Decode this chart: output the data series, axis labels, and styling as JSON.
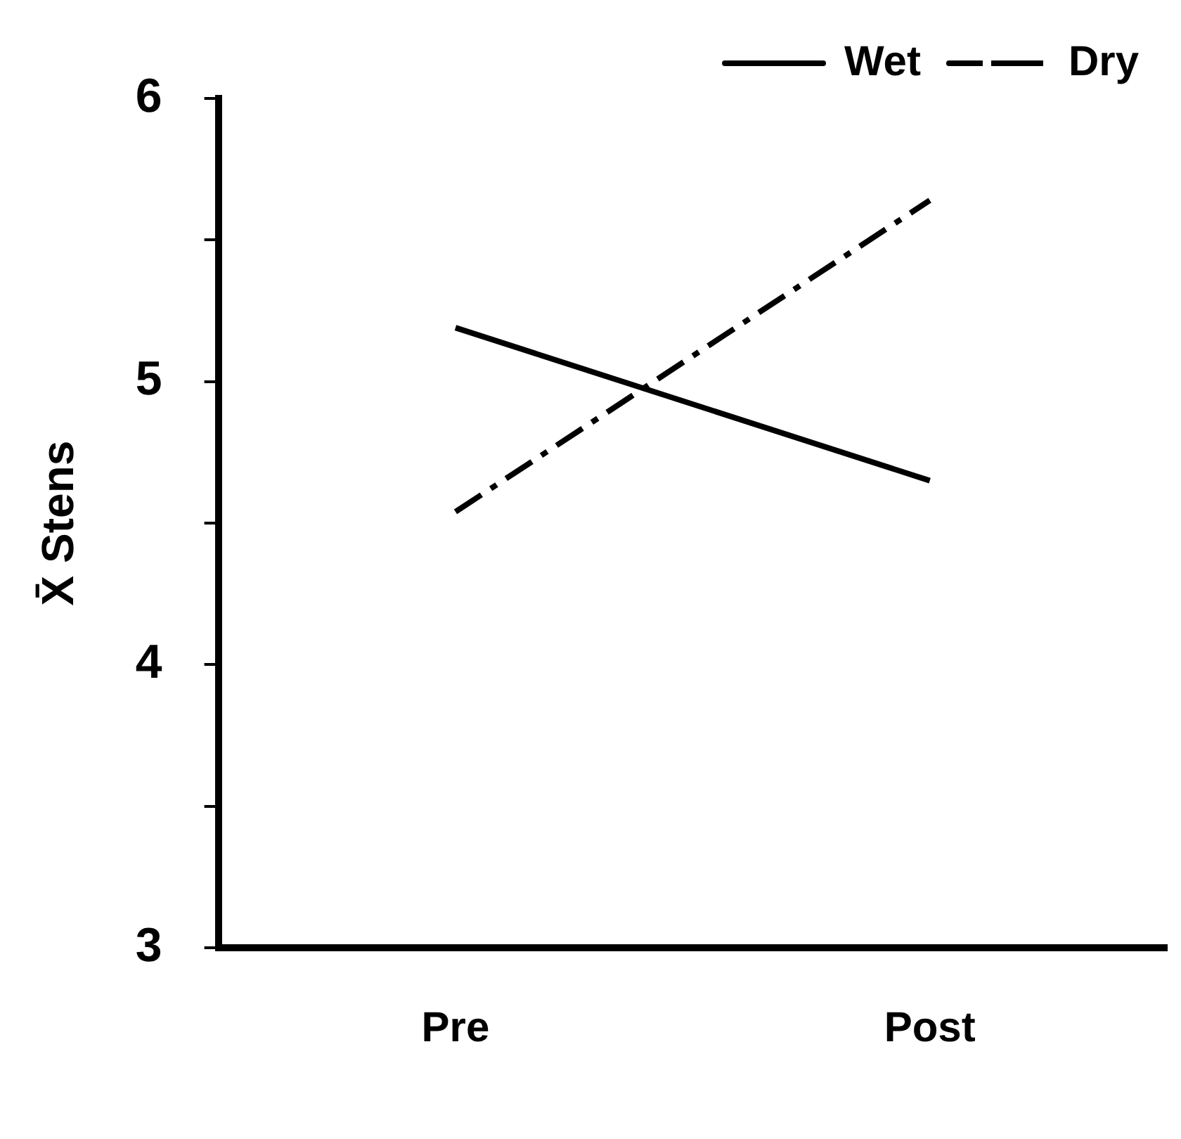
{
  "chart_data": {
    "type": "line",
    "ylabel": "X̄ Stens",
    "categories": [
      "Pre",
      "Post"
    ],
    "series": [
      {
        "name": "Wet",
        "color": "#000000",
        "values": [
          5.19,
          4.65
        ],
        "line_style": "solid"
      },
      {
        "name": "Dry",
        "color": "#000000",
        "values": [
          4.54,
          5.64
        ],
        "line_style": "dashed"
      }
    ],
    "ylim": [
      3,
      6
    ],
    "yticks": [
      3,
      {
        "value": 3.5,
        "label": null
      },
      4,
      {
        "value": 4.5,
        "label": null
      },
      5,
      {
        "value": 5.5,
        "label": null
      },
      6
    ],
    "grid": false,
    "legend": "top right",
    "marker": "none"
  }
}
